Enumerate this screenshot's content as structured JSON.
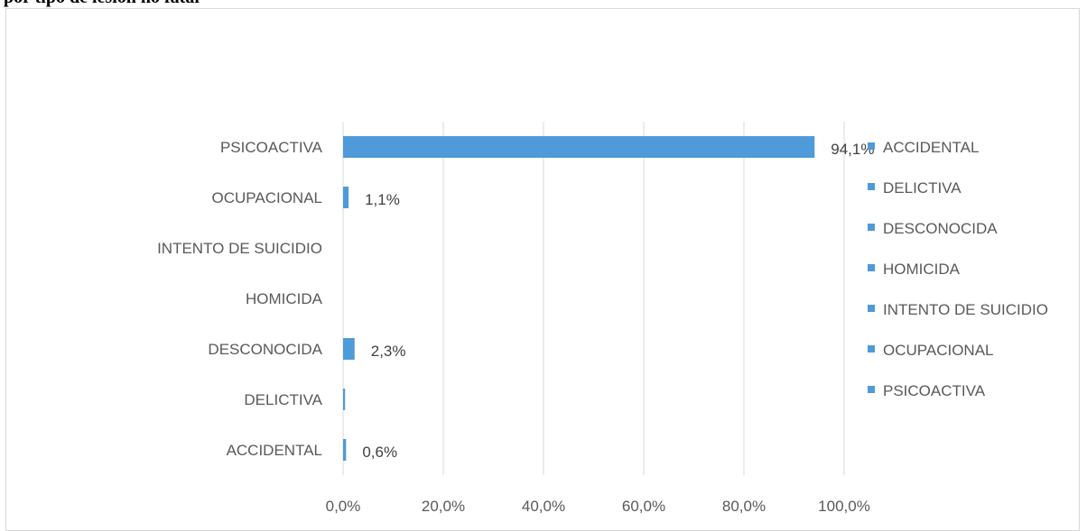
{
  "title_fragment": "por tipo de lesión no fatal",
  "chart_data": {
    "type": "bar",
    "orientation": "horizontal",
    "categories": [
      "ACCIDENTAL",
      "DELICTIVA",
      "DESCONOCIDA",
      "HOMICIDA",
      "INTENTO DE SUICIDIO",
      "OCUPACIONAL",
      "PSICOACTIVA"
    ],
    "values": [
      0.6,
      0.4,
      2.3,
      0,
      0,
      1.1,
      94.1
    ],
    "data_labels": [
      "0,6%",
      "",
      "2,3%",
      "",
      "",
      "1,1%",
      "94,1%"
    ],
    "xlim": [
      0,
      100
    ],
    "x_ticks": [
      "0,0%",
      "20,0%",
      "40,0%",
      "60,0%",
      "80,0%",
      "100,0%"
    ],
    "grid": "vertical",
    "legend": {
      "placement": "right",
      "entries": [
        "ACCIDENTAL",
        "DELICTIVA",
        "DESCONOCIDA",
        "HOMICIDA",
        "INTENTO DE SUICIDIO",
        "OCUPACIONAL",
        "PSICOACTIVA"
      ]
    },
    "bar_color": "#4f9ad9"
  }
}
